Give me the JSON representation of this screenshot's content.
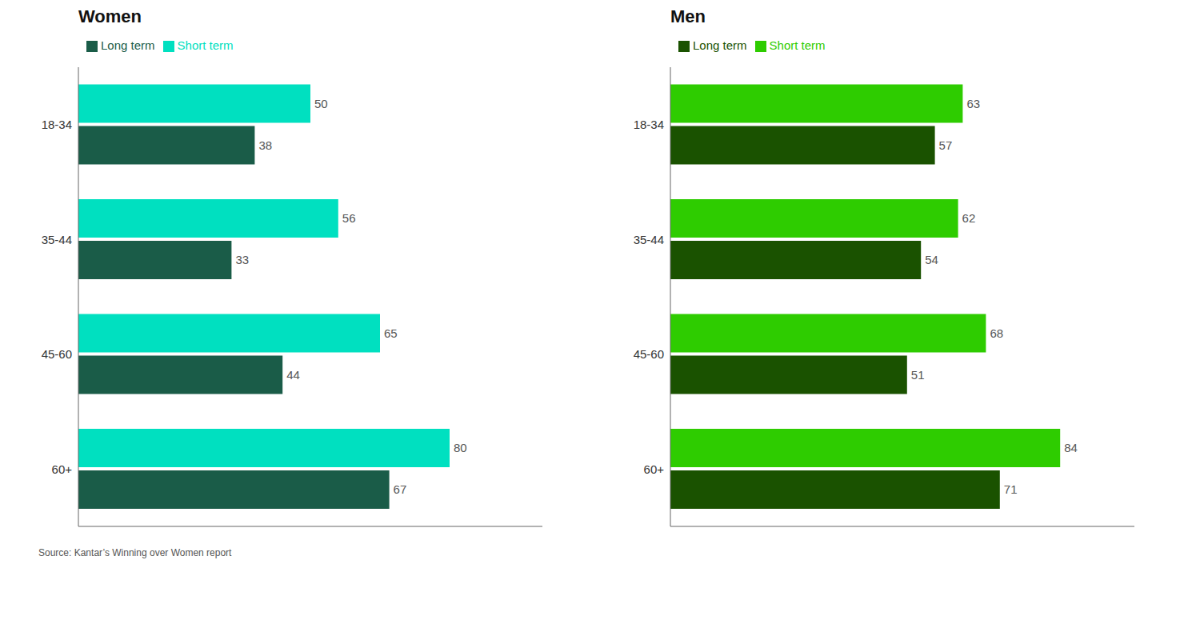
{
  "chart_data": [
    {
      "type": "bar",
      "orientation": "horizontal",
      "title": "Women",
      "categories": [
        "18-34",
        "35-44",
        "45-60",
        "60+"
      ],
      "series": [
        {
          "name": "Short term",
          "color": "#00e0c0",
          "values": [
            50,
            56,
            65,
            80
          ]
        },
        {
          "name": "Long term",
          "color": "#1a5c48",
          "values": [
            38,
            33,
            44,
            67
          ]
        }
      ],
      "xlim": [
        0,
        100
      ],
      "data_labels": true,
      "tick_labels": "y",
      "grid": false,
      "legend": "top",
      "annotations": [
        "Source: Kantar’s Winning over Women report"
      ]
    },
    {
      "type": "bar",
      "orientation": "horizontal",
      "title": "Men",
      "categories": [
        "18-34",
        "35-44",
        "45-60",
        "60+"
      ],
      "series": [
        {
          "name": "Short term",
          "color": "#2ecc00",
          "values": [
            63,
            62,
            68,
            84
          ]
        },
        {
          "name": "Long term",
          "color": "#1a5200",
          "values": [
            57,
            54,
            51,
            71
          ]
        }
      ],
      "xlim": [
        0,
        100
      ],
      "data_labels": true,
      "tick_labels": "y",
      "grid": false,
      "legend": "top"
    }
  ]
}
